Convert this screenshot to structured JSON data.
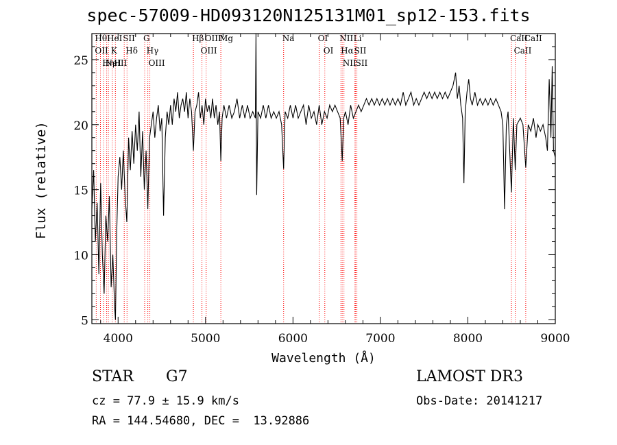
{
  "chart_data": {
    "type": "line",
    "title": "spec-57009-HD093120N125131M01_sp12-153.fits",
    "xlabel": "Wavelength (Å)",
    "ylabel": "Flux (relative)",
    "xlim": [
      3700,
      9000
    ],
    "ylim": [
      4.7,
      27
    ],
    "xticks": [
      4000,
      5000,
      6000,
      7000,
      8000,
      9000
    ],
    "yticks": [
      5,
      10,
      15,
      20,
      25
    ],
    "series": [
      {
        "name": "flux",
        "points": [
          [
            3700,
            13.5
          ],
          [
            3720,
            16.5
          ],
          [
            3740,
            11
          ],
          [
            3760,
            14
          ],
          [
            3780,
            8.5
          ],
          [
            3800,
            15.5
          ],
          [
            3820,
            10
          ],
          [
            3840,
            7
          ],
          [
            3860,
            13
          ],
          [
            3880,
            11
          ],
          [
            3900,
            14.5
          ],
          [
            3920,
            7.5
          ],
          [
            3940,
            10
          ],
          [
            3960,
            6
          ],
          [
            3970,
            5
          ],
          [
            3985,
            12
          ],
          [
            4000,
            16
          ],
          [
            4020,
            17.5
          ],
          [
            4040,
            15
          ],
          [
            4060,
            18
          ],
          [
            4080,
            14.5
          ],
          [
            4100,
            12.5
          ],
          [
            4120,
            19
          ],
          [
            4140,
            16.5
          ],
          [
            4160,
            19.5
          ],
          [
            4180,
            17
          ],
          [
            4200,
            20
          ],
          [
            4220,
            18
          ],
          [
            4240,
            21
          ],
          [
            4260,
            16
          ],
          [
            4280,
            19.5
          ],
          [
            4300,
            15
          ],
          [
            4320,
            18
          ],
          [
            4340,
            13.5
          ],
          [
            4360,
            19
          ],
          [
            4380,
            20
          ],
          [
            4400,
            21
          ],
          [
            4420,
            19
          ],
          [
            4440,
            20.5
          ],
          [
            4460,
            21.5
          ],
          [
            4480,
            19.5
          ],
          [
            4500,
            20.5
          ],
          [
            4520,
            13
          ],
          [
            4540,
            19
          ],
          [
            4560,
            21
          ],
          [
            4580,
            20
          ],
          [
            4600,
            21.5
          ],
          [
            4620,
            20
          ],
          [
            4640,
            22
          ],
          [
            4660,
            21
          ],
          [
            4680,
            22.5
          ],
          [
            4700,
            20.5
          ],
          [
            4720,
            21.5
          ],
          [
            4740,
            22
          ],
          [
            4760,
            21
          ],
          [
            4780,
            22.5
          ],
          [
            4800,
            20.5
          ],
          [
            4820,
            22
          ],
          [
            4840,
            21
          ],
          [
            4861,
            18
          ],
          [
            4880,
            21
          ],
          [
            4900,
            21.5
          ],
          [
            4920,
            22.5
          ],
          [
            4940,
            20.5
          ],
          [
            4960,
            21.5
          ],
          [
            4980,
            20
          ],
          [
            5000,
            22
          ],
          [
            5020,
            21
          ],
          [
            5040,
            21.5
          ],
          [
            5060,
            20.5
          ],
          [
            5080,
            22
          ],
          [
            5100,
            20.5
          ],
          [
            5120,
            21.5
          ],
          [
            5140,
            20
          ],
          [
            5160,
            21
          ],
          [
            5175,
            17.2
          ],
          [
            5190,
            20.5
          ],
          [
            5210,
            21.5
          ],
          [
            5240,
            20.5
          ],
          [
            5270,
            21.5
          ],
          [
            5300,
            20.5
          ],
          [
            5330,
            21
          ],
          [
            5360,
            22
          ],
          [
            5390,
            20.5
          ],
          [
            5420,
            21.5
          ],
          [
            5450,
            20.5
          ],
          [
            5480,
            21.5
          ],
          [
            5510,
            20.5
          ],
          [
            5540,
            21
          ],
          [
            5570,
            20.5
          ],
          [
            5577,
            27
          ],
          [
            5585,
            14.6
          ],
          [
            5600,
            21
          ],
          [
            5630,
            20.5
          ],
          [
            5660,
            21.5
          ],
          [
            5690,
            20.5
          ],
          [
            5720,
            21.5
          ],
          [
            5750,
            20.5
          ],
          [
            5780,
            21
          ],
          [
            5810,
            20.5
          ],
          [
            5840,
            21
          ],
          [
            5870,
            20
          ],
          [
            5893,
            16.6
          ],
          [
            5910,
            21
          ],
          [
            5940,
            20.5
          ],
          [
            5970,
            21.5
          ],
          [
            6000,
            20.5
          ],
          [
            6030,
            21.5
          ],
          [
            6060,
            20.5
          ],
          [
            6090,
            21
          ],
          [
            6120,
            21.5
          ],
          [
            6150,
            20
          ],
          [
            6180,
            21.5
          ],
          [
            6210,
            20.5
          ],
          [
            6240,
            21
          ],
          [
            6270,
            20
          ],
          [
            6300,
            21.5
          ],
          [
            6330,
            20
          ],
          [
            6360,
            21
          ],
          [
            6390,
            20.5
          ],
          [
            6420,
            21.5
          ],
          [
            6450,
            21
          ],
          [
            6480,
            21.5
          ],
          [
            6510,
            21
          ],
          [
            6540,
            20.5
          ],
          [
            6563,
            17.2
          ],
          [
            6580,
            20.5
          ],
          [
            6600,
            21
          ],
          [
            6630,
            20
          ],
          [
            6660,
            21.5
          ],
          [
            6690,
            20.5
          ],
          [
            6720,
            21
          ],
          [
            6750,
            21.5
          ],
          [
            6780,
            21
          ],
          [
            6810,
            21.5
          ],
          [
            6840,
            22
          ],
          [
            6870,
            21.5
          ],
          [
            6900,
            22
          ],
          [
            6930,
            21.5
          ],
          [
            6960,
            22
          ],
          [
            6990,
            21.5
          ],
          [
            7020,
            22
          ],
          [
            7050,
            21.5
          ],
          [
            7080,
            22
          ],
          [
            7110,
            21.5
          ],
          [
            7140,
            22
          ],
          [
            7170,
            21.5
          ],
          [
            7200,
            22
          ],
          [
            7230,
            21.5
          ],
          [
            7260,
            22.5
          ],
          [
            7290,
            21.5
          ],
          [
            7320,
            22
          ],
          [
            7350,
            22.5
          ],
          [
            7380,
            21.5
          ],
          [
            7410,
            22
          ],
          [
            7440,
            21.5
          ],
          [
            7470,
            22
          ],
          [
            7500,
            22.5
          ],
          [
            7530,
            22
          ],
          [
            7560,
            22.5
          ],
          [
            7590,
            22
          ],
          [
            7620,
            22.5
          ],
          [
            7650,
            22
          ],
          [
            7680,
            22.5
          ],
          [
            7710,
            22
          ],
          [
            7740,
            22.5
          ],
          [
            7770,
            22
          ],
          [
            7800,
            22.5
          ],
          [
            7830,
            23
          ],
          [
            7860,
            24
          ],
          [
            7880,
            22
          ],
          [
            7900,
            23
          ],
          [
            7920,
            21.5
          ],
          [
            7940,
            20.5
          ],
          [
            7955,
            15.5
          ],
          [
            7970,
            21
          ],
          [
            7990,
            22.5
          ],
          [
            8010,
            23.5
          ],
          [
            8030,
            22
          ],
          [
            8050,
            21.5
          ],
          [
            8080,
            22.5
          ],
          [
            8110,
            21.5
          ],
          [
            8140,
            22
          ],
          [
            8170,
            21.5
          ],
          [
            8200,
            22
          ],
          [
            8230,
            21.5
          ],
          [
            8260,
            22
          ],
          [
            8290,
            21.5
          ],
          [
            8320,
            22
          ],
          [
            8350,
            21.5
          ],
          [
            8380,
            21
          ],
          [
            8400,
            20
          ],
          [
            8420,
            13.5
          ],
          [
            8440,
            20
          ],
          [
            8460,
            21
          ],
          [
            8498,
            14.8
          ],
          [
            8520,
            20.5
          ],
          [
            8542,
            16.5
          ],
          [
            8560,
            20
          ],
          [
            8600,
            20.5
          ],
          [
            8630,
            20
          ],
          [
            8662,
            16.7
          ],
          [
            8690,
            20
          ],
          [
            8720,
            19.5
          ],
          [
            8750,
            20.5
          ],
          [
            8780,
            19
          ],
          [
            8800,
            20
          ],
          [
            8830,
            19.5
          ],
          [
            8860,
            20
          ],
          [
            8890,
            19
          ],
          [
            8910,
            18
          ],
          [
            8930,
            23.5
          ],
          [
            8950,
            19
          ],
          [
            8965,
            24.5
          ],
          [
            8980,
            18
          ],
          [
            9000,
            17.5
          ]
        ]
      }
    ],
    "line_marks": [
      {
        "wl": 3750,
        "labels": [
          "Hθ",
          "OII"
        ]
      },
      {
        "wl": 3798,
        "labels": []
      },
      {
        "wl": 3835,
        "labels": [
          "Hη"
        ]
      },
      {
        "wl": 3869,
        "labels": [
          "NeIII"
        ]
      },
      {
        "wl": 3889,
        "labels": [
          "HeI"
        ]
      },
      {
        "wl": 3934,
        "labels": [
          "K"
        ]
      },
      {
        "wl": 3969,
        "labels": [
          "H"
        ]
      },
      {
        "wl": 4070,
        "labels": [
          "SII"
        ]
      },
      {
        "wl": 4102,
        "labels": [
          "Hδ"
        ]
      },
      {
        "wl": 4304,
        "labels": [
          "G"
        ]
      },
      {
        "wl": 4340,
        "labels": [
          "Hγ"
        ]
      },
      {
        "wl": 4363,
        "labels": [
          "OIII"
        ]
      },
      {
        "wl": 4861,
        "labels": [
          "Hβ"
        ]
      },
      {
        "wl": 4959,
        "labels": [
          "OIII"
        ]
      },
      {
        "wl": 5007,
        "labels": [
          "OIII"
        ]
      },
      {
        "wl": 5175,
        "labels": [
          "Mg"
        ]
      },
      {
        "wl": 5893,
        "labels": [
          "Na"
        ]
      },
      {
        "wl": 6300,
        "labels": [
          "OI"
        ]
      },
      {
        "wl": 6364,
        "labels": [
          "OI"
        ]
      },
      {
        "wl": 6548,
        "labels": [
          "NII"
        ]
      },
      {
        "wl": 6563,
        "labels": [
          "Hα"
        ]
      },
      {
        "wl": 6583,
        "labels": [
          "NII"
        ]
      },
      {
        "wl": 6708,
        "labels": [
          "Li"
        ]
      },
      {
        "wl": 6716,
        "labels": [
          "SII"
        ]
      },
      {
        "wl": 6731,
        "labels": [
          "SII"
        ]
      },
      {
        "wl": 8498,
        "labels": [
          "CaII"
        ]
      },
      {
        "wl": 8542,
        "labels": [
          "CaII"
        ]
      },
      {
        "wl": 8662,
        "labels": [
          "CaII"
        ]
      }
    ],
    "line_color": "#ff0000",
    "mark_color": "#cc0000"
  },
  "info": {
    "class": "STAR",
    "subclass": "G7",
    "survey": "LAMOST DR3",
    "cz": "cz = 77.9 ± 15.9 km/s",
    "obs_date": "Obs-Date: 20141217",
    "coords": "RA = 144.54680, DEC =  13.92886"
  }
}
